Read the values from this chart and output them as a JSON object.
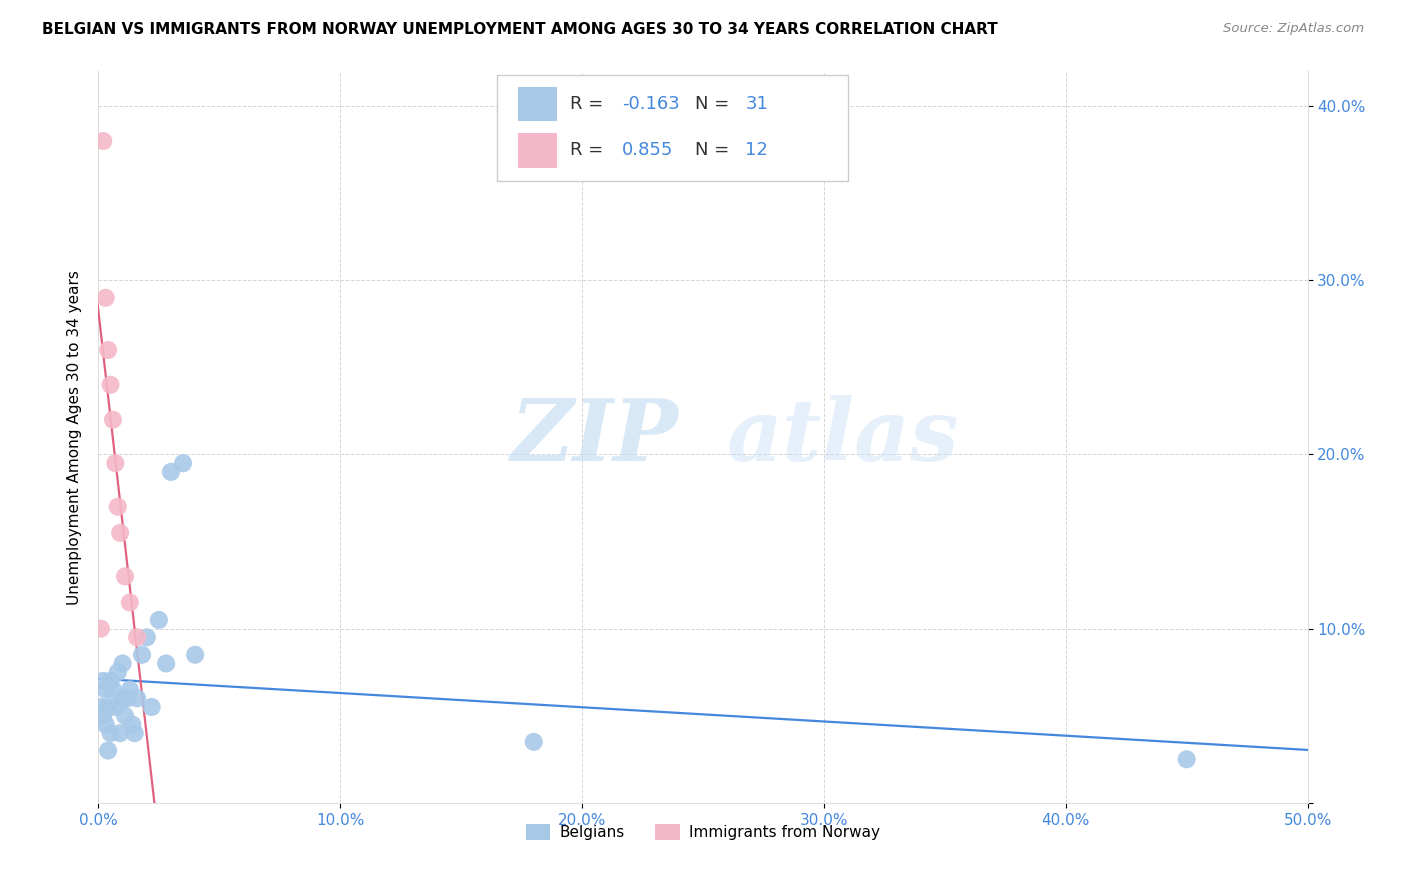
{
  "title": "BELGIAN VS IMMIGRANTS FROM NORWAY UNEMPLOYMENT AMONG AGES 30 TO 34 YEARS CORRELATION CHART",
  "source": "Source: ZipAtlas.com",
  "ylabel": "Unemployment Among Ages 30 to 34 years",
  "xlim": [
    0.0,
    0.5
  ],
  "ylim": [
    0.0,
    0.42
  ],
  "belgian_color": "#a8c8e8",
  "norway_color": "#f4b8c8",
  "belgian_line_color": "#4488dd",
  "norway_line_color": "#e06080",
  "belgian_R": -0.163,
  "belgian_N": 31,
  "norway_R": 0.855,
  "norway_N": 12,
  "legend_label_belgian": "Belgians",
  "legend_label_norway": "Immigrants from Norway",
  "watermark_zip": "ZIP",
  "watermark_atlas": "atlas",
  "belgians_x": [
    0.001,
    0.002,
    0.002,
    0.003,
    0.003,
    0.004,
    0.004,
    0.005,
    0.005,
    0.006,
    0.007,
    0.008,
    0.009,
    0.01,
    0.01,
    0.011,
    0.012,
    0.013,
    0.014,
    0.015,
    0.016,
    0.018,
    0.02,
    0.022,
    0.025,
    0.028,
    0.03,
    0.035,
    0.04,
    0.18,
    0.45
  ],
  "belgians_y": [
    0.055,
    0.05,
    0.07,
    0.045,
    0.065,
    0.03,
    0.055,
    0.04,
    0.07,
    0.065,
    0.055,
    0.075,
    0.04,
    0.06,
    0.08,
    0.05,
    0.06,
    0.065,
    0.045,
    0.04,
    0.06,
    0.085,
    0.095,
    0.055,
    0.105,
    0.08,
    0.19,
    0.195,
    0.085,
    0.035,
    0.025
  ],
  "norway_x": [
    0.001,
    0.002,
    0.003,
    0.004,
    0.005,
    0.006,
    0.007,
    0.008,
    0.009,
    0.011,
    0.013,
    0.016
  ],
  "norway_y": [
    0.1,
    0.38,
    0.29,
    0.26,
    0.24,
    0.22,
    0.195,
    0.17,
    0.155,
    0.13,
    0.115,
    0.095
  ]
}
